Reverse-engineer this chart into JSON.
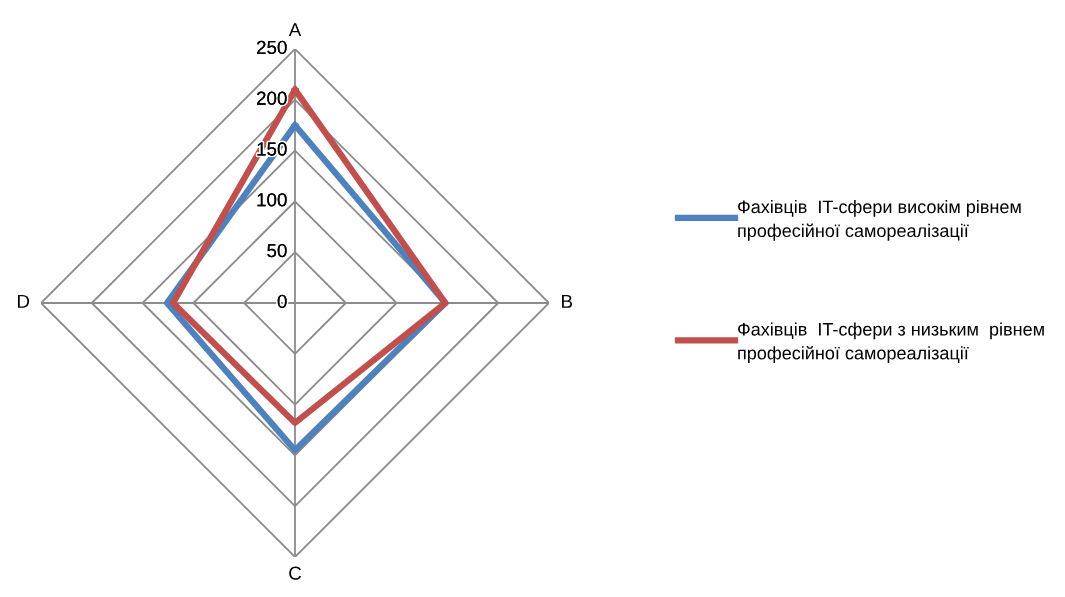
{
  "chart_data": {
    "type": "radar",
    "categories": [
      "A",
      "B",
      "C",
      "D"
    ],
    "ylim": [
      0,
      250
    ],
    "yticks": [
      0,
      50,
      100,
      150,
      200,
      250
    ],
    "grid": true,
    "legend": "right",
    "series": [
      {
        "name": "Фахівців  IT-сфери високім рівнем професійної самореалізації",
        "color": "#4f81bd",
        "values": [
          175,
          148,
          145,
          126
        ]
      },
      {
        "name": "Фахівців  IT-сфери з низьким  рівнем професійної самореалізації",
        "color": "#c0504d",
        "values": [
          210,
          148,
          118,
          120
        ]
      }
    ]
  }
}
